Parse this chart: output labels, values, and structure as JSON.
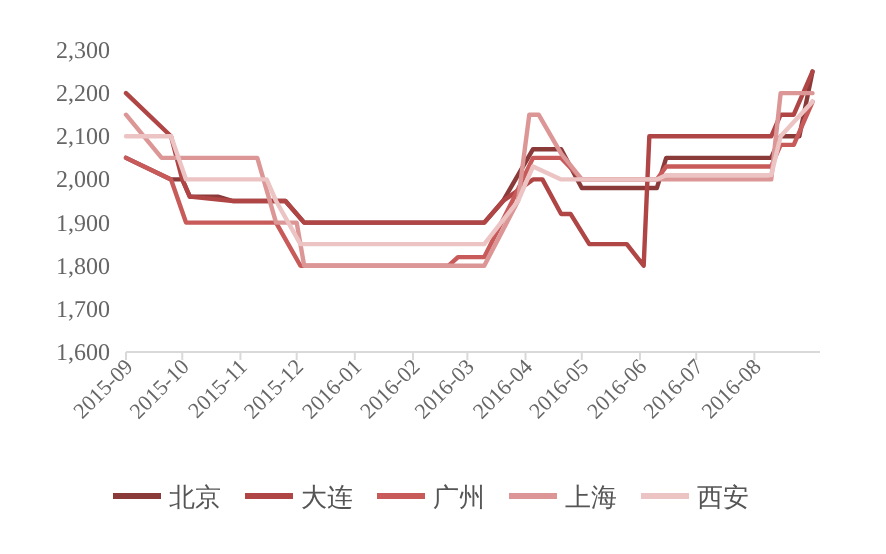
{
  "chart_data": {
    "type": "line",
    "xlim": [
      "2015-09-01",
      "2016-09-05"
    ],
    "xticks": [
      "2015-09",
      "2015-10",
      "2015-11",
      "2015-12",
      "2016-01",
      "2016-02",
      "2016-03",
      "2016-04",
      "2016-05",
      "2016-06",
      "2016-07",
      "2016-08"
    ],
    "ylim": [
      1600,
      2300
    ],
    "yticks": [
      {
        "value": 1600,
        "label": "1,600"
      },
      {
        "value": 1700,
        "label": "1,700"
      },
      {
        "value": 1800,
        "label": "1,800"
      },
      {
        "value": 1900,
        "label": "1,900"
      },
      {
        "value": 2000,
        "label": "2,000"
      },
      {
        "value": 2100,
        "label": "2,100"
      },
      {
        "value": 2200,
        "label": "2,200"
      },
      {
        "value": 2300,
        "label": "2,300"
      }
    ],
    "grid": false,
    "legend": "bottom",
    "line_style": "solid",
    "series": [
      {
        "name": "北京",
        "color": "#8b3a3a",
        "x": [
          "2015-09-01",
          "2015-09-25",
          "2015-10-01",
          "2015-10-05",
          "2015-10-20",
          "2015-10-28",
          "2015-11-25",
          "2015-12-05",
          "2016-03-10",
          "2016-03-20",
          "2016-04-05",
          "2016-04-20",
          "2016-05-01",
          "2016-06-10",
          "2016-06-15",
          "2016-08-10",
          "2016-08-15",
          "2016-08-25",
          "2016-09-01"
        ],
        "values": [
          2050,
          2000,
          2000,
          1960,
          1960,
          1950,
          1950,
          1900,
          1900,
          1950,
          2070,
          2070,
          1980,
          1980,
          2050,
          2050,
          2100,
          2100,
          2250
        ]
      },
      {
        "name": "大连",
        "color": "#b04545",
        "x": [
          "2015-09-01",
          "2015-09-25",
          "2015-10-01",
          "2015-10-05",
          "2015-10-28",
          "2015-11-25",
          "2015-12-05",
          "2016-03-10",
          "2016-03-20",
          "2016-04-05",
          "2016-04-10",
          "2016-04-20",
          "2016-04-25",
          "2016-05-05",
          "2016-05-25",
          "2016-06-03",
          "2016-06-06",
          "2016-08-10",
          "2016-08-15",
          "2016-08-22",
          "2016-09-01"
        ],
        "values": [
          2200,
          2100,
          2000,
          1960,
          1950,
          1950,
          1900,
          1900,
          1950,
          2000,
          2000,
          1920,
          1920,
          1850,
          1850,
          1800,
          2100,
          2100,
          2150,
          2150,
          2250
        ]
      },
      {
        "name": "广州",
        "color": "#c85a5a",
        "x": [
          "2015-09-01",
          "2015-09-25",
          "2015-10-03",
          "2015-11-20",
          "2015-12-03",
          "2016-02-20",
          "2016-02-25",
          "2016-03-10",
          "2016-03-25",
          "2016-04-05",
          "2016-04-20",
          "2016-05-01",
          "2016-06-10",
          "2016-06-15",
          "2016-08-10",
          "2016-08-15",
          "2016-08-22",
          "2016-09-01"
        ],
        "values": [
          2050,
          2000,
          1900,
          1900,
          1800,
          1800,
          1820,
          1820,
          1950,
          2050,
          2050,
          2000,
          2000,
          2030,
          2030,
          2080,
          2080,
          2180
        ]
      },
      {
        "name": "上海",
        "color": "#dc9696",
        "x": [
          "2015-09-01",
          "2015-09-20",
          "2015-11-10",
          "2015-11-20",
          "2015-12-01",
          "2015-12-05",
          "2016-03-10",
          "2016-03-28",
          "2016-04-03",
          "2016-04-08",
          "2016-04-20",
          "2016-05-01",
          "2016-08-10",
          "2016-08-15",
          "2016-09-01"
        ],
        "values": [
          2150,
          2050,
          2050,
          1900,
          1900,
          1800,
          1800,
          1950,
          2150,
          2150,
          2060,
          2000,
          2000,
          2200,
          2200
        ]
      },
      {
        "name": "西安",
        "color": "#ecc4c4",
        "x": [
          "2015-09-01",
          "2015-09-25",
          "2015-10-03",
          "2015-11-15",
          "2015-11-20",
          "2015-12-03",
          "2016-03-10",
          "2016-03-28",
          "2016-04-05",
          "2016-04-20",
          "2016-06-10",
          "2016-06-15",
          "2016-08-10",
          "2016-08-15",
          "2016-09-01"
        ],
        "values": [
          2100,
          2100,
          2000,
          2000,
          1950,
          1850,
          1850,
          1950,
          2030,
          2000,
          2000,
          2010,
          2010,
          2100,
          2180
        ]
      }
    ]
  }
}
